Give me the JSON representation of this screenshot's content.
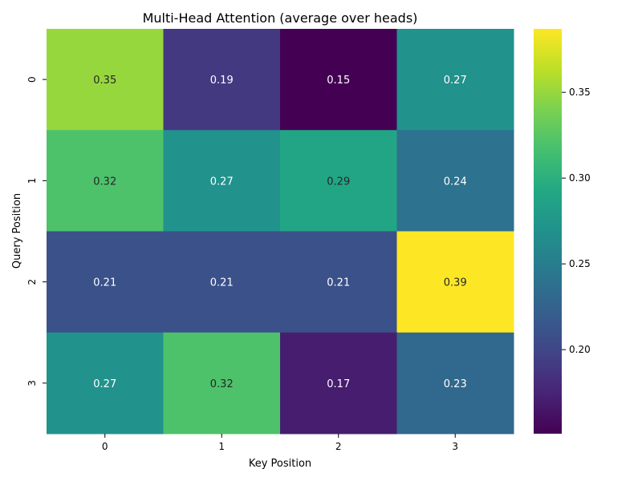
{
  "chart_data": {
    "type": "heatmap",
    "title": "Multi-Head Attention (average over heads)",
    "xlabel": "Key Position",
    "ylabel": "Query Position",
    "x_categories": [
      "0",
      "1",
      "2",
      "3"
    ],
    "y_categories": [
      "0",
      "1",
      "2",
      "3"
    ],
    "values": [
      [
        0.35,
        0.19,
        0.15,
        0.27
      ],
      [
        0.32,
        0.27,
        0.29,
        0.24
      ],
      [
        0.21,
        0.21,
        0.21,
        0.39
      ],
      [
        0.27,
        0.32,
        0.17,
        0.23
      ]
    ],
    "cell_labels": [
      [
        "0.35",
        "0.19",
        "0.15",
        "0.27"
      ],
      [
        "0.32",
        "0.27",
        "0.29",
        "0.24"
      ],
      [
        "0.21",
        "0.21",
        "0.21",
        "0.39"
      ],
      [
        "0.27",
        "0.32",
        "0.17",
        "0.23"
      ]
    ],
    "colormap": "viridis",
    "color_range": [
      0.151,
      0.387
    ],
    "colorbar_ticks": [
      0.2,
      0.25,
      0.3,
      0.35
    ],
    "colorbar_tick_labels": [
      "0.20",
      "0.25",
      "0.30",
      "0.35"
    ]
  }
}
